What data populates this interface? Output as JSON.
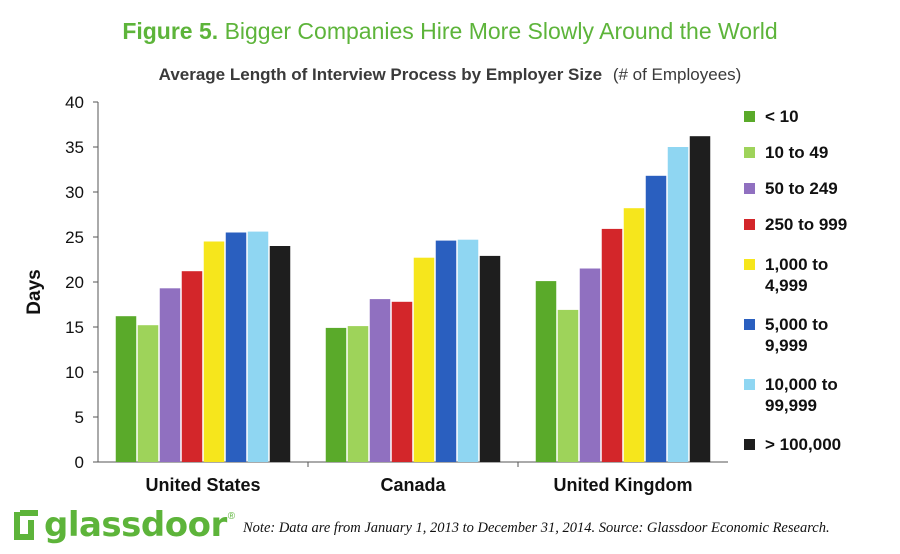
{
  "figure": {
    "number": "Figure 5.",
    "title": "Bigger Companies Hire More Slowly Around the World"
  },
  "subtitle": {
    "main": "Average Length of Interview Process by Employer Size",
    "note": "(# of Employees)"
  },
  "footer": {
    "logo_text": "glassdoor",
    "logo_mark": "®",
    "note": "Note: Data are from January 1, 2013 to December 31, 2014. Source: Glassdoor Economic Research."
  },
  "chart_data": {
    "type": "bar",
    "title": "Average Length of Interview Process by Employer Size",
    "xlabel": "",
    "ylabel": "Days",
    "ylim": [
      0,
      40
    ],
    "yticks": [
      "0",
      "5",
      "10",
      "15",
      "20",
      "25",
      "30",
      "35",
      "40"
    ],
    "grid": false,
    "legend_position": "right",
    "categories": [
      "United States",
      "Canada",
      "United Kingdom"
    ],
    "series": [
      {
        "name": "< 10",
        "color": "#5aaa2a",
        "values": [
          16.2,
          14.9,
          20.1
        ]
      },
      {
        "name": "10 to 49",
        "color": "#9ed35a",
        "values": [
          15.2,
          15.1,
          16.9
        ]
      },
      {
        "name": "50 to 249",
        "color": "#9070c0",
        "values": [
          19.3,
          18.1,
          21.5
        ]
      },
      {
        "name": "250 to 999",
        "color": "#d3262a",
        "values": [
          21.2,
          17.8,
          25.9
        ]
      },
      {
        "name": "1,000 to 4,999",
        "color": "#f6e61c",
        "values": [
          24.5,
          22.7,
          28.2
        ]
      },
      {
        "name": "5,000 to 9,999",
        "color": "#2a5fbf",
        "values": [
          25.5,
          24.6,
          31.8
        ]
      },
      {
        "name": "10,000 to 99,999",
        "color": "#8fd6f2",
        "values": [
          25.6,
          24.7,
          35.0
        ]
      },
      {
        "name": "> 100,000",
        "color": "#1e1e1e",
        "values": [
          24.0,
          22.9,
          36.2
        ]
      }
    ]
  },
  "legend_labels": [
    "< 10",
    "10 to 49",
    "50 to 249",
    "250 to 999",
    "1,000 to\n4,999",
    "5,000 to\n9,999",
    "10,000 to\n99,999",
    "> 100,000"
  ]
}
